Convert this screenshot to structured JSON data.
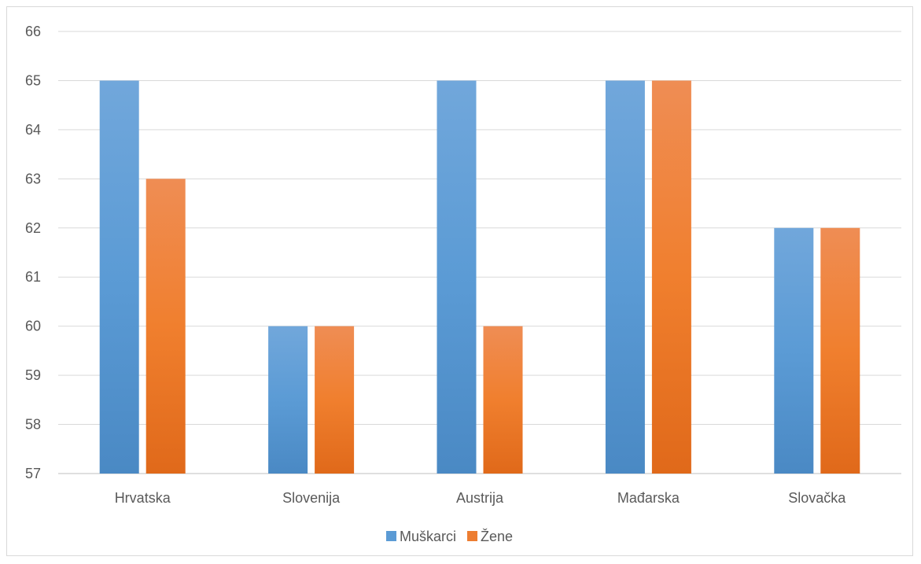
{
  "chart_data": {
    "type": "bar",
    "categories": [
      "Hrvatska",
      "Slovenija",
      "Austrija",
      "Mađarska",
      "Slovačka"
    ],
    "series": [
      {
        "name": "Muškarci",
        "values": [
          65,
          60,
          65,
          65,
          62
        ],
        "color": "#5b9bd5"
      },
      {
        "name": "Žene",
        "values": [
          63,
          60,
          60,
          65,
          62
        ],
        "color": "#ed7d31"
      }
    ],
    "ylim": [
      57,
      66
    ],
    "yticks": [
      57,
      58,
      59,
      60,
      61,
      62,
      63,
      64,
      65,
      66
    ],
    "grid": true,
    "legend": "bottom"
  }
}
